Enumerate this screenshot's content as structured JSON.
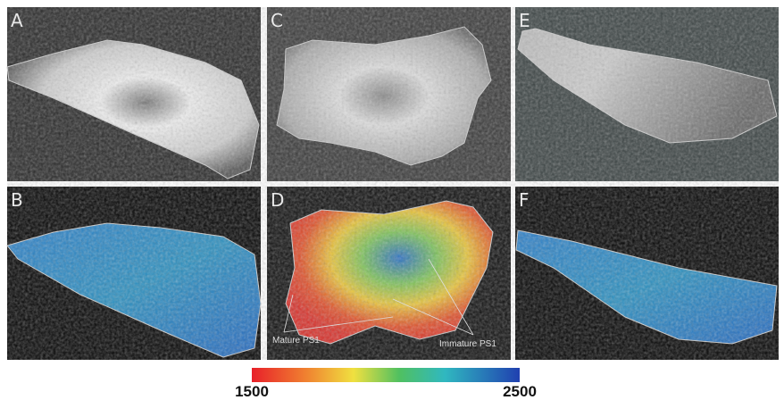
{
  "panels": [
    {
      "label": "A"
    },
    {
      "label": "C"
    },
    {
      "label": "E"
    },
    {
      "label": "B"
    },
    {
      "label": "D"
    },
    {
      "label": "F"
    }
  ],
  "annotations": [
    "Mature PS1",
    "Immature PS1"
  ],
  "colorbar": {
    "ticks": [
      1500,
      2500
    ]
  }
}
